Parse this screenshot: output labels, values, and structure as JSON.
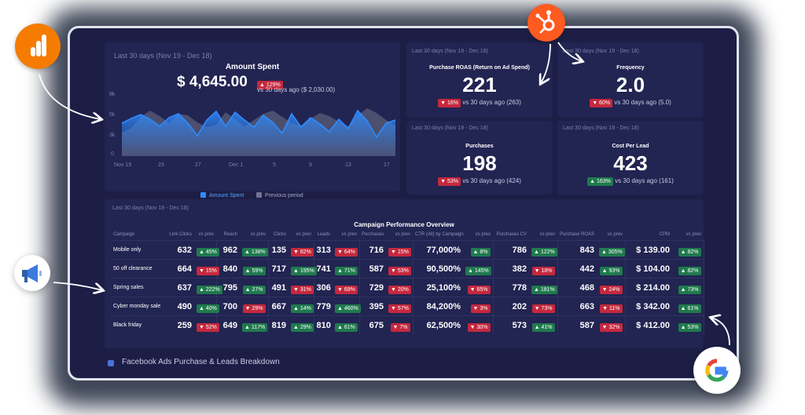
{
  "amount_spent": {
    "period": "Last 30 days (Nov 19 - Dec 18)",
    "title": "Amount Spent",
    "value": "$ 4,645.00",
    "badge": "▲ 129%",
    "compare": "vs 30 days ago ($ 2,030.00)"
  },
  "chart_data": {
    "type": "area",
    "title": "",
    "xlabel": "",
    "ylabel": "",
    "ylim": [
      0,
      8000
    ],
    "y_ticks": [
      "8k",
      "5k",
      "3k",
      "0"
    ],
    "x_ticks": [
      "Nov 19",
      "23",
      "27",
      "Dec 1",
      "5",
      "9",
      "13",
      "17"
    ],
    "legend_placement": "bottom",
    "series": [
      {
        "name": "Amount Spent",
        "color": "#2f8bff",
        "values": [
          4200,
          4800,
          5300,
          4700,
          3800,
          4900,
          5400,
          4200,
          2600,
          4600,
          5700,
          3800,
          5600,
          4600,
          3700,
          5200,
          4300,
          2900,
          5400,
          3700,
          4900,
          4100,
          3100,
          4700,
          3500,
          5800,
          4500,
          2400,
          4200,
          4600
        ]
      },
      {
        "name": "Previous period",
        "color": "#5b5d78",
        "values": [
          3000,
          3600,
          5000,
          5800,
          5100,
          4200,
          5400,
          5200,
          4300,
          3700,
          4000,
          5600,
          4700,
          3800,
          4600,
          5400,
          5800,
          5000,
          4200,
          3900,
          4800,
          5500,
          5100,
          4400,
          3800,
          5200,
          6100,
          5500,
          4600,
          3900
        ]
      }
    ]
  },
  "kpis": {
    "roas": {
      "period": "Last 30 days (Nov 19 - Dec 18)",
      "title": "Purchase ROAS (Return on Ad Spend)",
      "value": "221",
      "badge": "▼ 16%",
      "compare": "vs 30 days ago (263)"
    },
    "frequency": {
      "period": "Last 30 days (Nov 19 - Dec 18)",
      "title": "Frequency",
      "value": "2.0",
      "badge": "▼ 60%",
      "compare": "vs 30 days ago (5.0)"
    },
    "purchases": {
      "period": "Last 30 days (Nov 19 - Dec 18)",
      "title": "Purchases",
      "value": "198",
      "badge": "▼ 53%",
      "compare": "vs 30 days ago (424)"
    },
    "cpl": {
      "period": "Last 30 days (Nov 19 - Dec 18)",
      "title": "Cost Per Lead",
      "value": "423",
      "badge": "▲ 163%",
      "compare": "vs 30 days ago (161)"
    }
  },
  "table": {
    "period": "Last 30 days (Nov 19 - Dec 18)",
    "title": "Campaign Performance Overview",
    "headers": [
      "Campaign",
      "Link Clicks",
      "vs prev",
      "Reach",
      "vs prev",
      "Clicks",
      "vs prev",
      "Leads",
      "vs prev",
      "Purchases",
      "vs prev",
      "CTR (All) by Campaign",
      "vs prev",
      "Purchases CV",
      "vs prev",
      "Purchase ROAS",
      "vs prev",
      "CPM",
      "vs prev"
    ],
    "rows": [
      {
        "name": "Mobile only",
        "cells": [
          [
            "632",
            "▲ 45%",
            "up"
          ],
          [
            "962",
            "▲ 138%",
            "up"
          ],
          [
            "135",
            "▼ 82%",
            "down"
          ],
          [
            "313",
            "▼ 64%",
            "down"
          ],
          [
            "716",
            "▼ 15%",
            "down"
          ],
          [
            "77,000%",
            "▲ 8%",
            "up"
          ],
          [
            "786",
            "▲ 122%",
            "up"
          ],
          [
            "843",
            "▲ 305%",
            "up"
          ],
          [
            "$ 139.00",
            "▲ 82%",
            "up"
          ]
        ]
      },
      {
        "name": "50 off clearance",
        "cells": [
          [
            "664",
            "▼ 15%",
            "down"
          ],
          [
            "840",
            "▲ 59%",
            "up"
          ],
          [
            "717",
            "▲ 195%",
            "up"
          ],
          [
            "741",
            "▲ 71%",
            "up"
          ],
          [
            "587",
            "▼ 53%",
            "down"
          ],
          [
            "90,500%",
            "▲ 145%",
            "up"
          ],
          [
            "382",
            "▼ 18%",
            "down"
          ],
          [
            "442",
            "▲ 93%",
            "up"
          ],
          [
            "$ 104.00",
            "▲ 82%",
            "up"
          ]
        ]
      },
      {
        "name": "Spring sales",
        "cells": [
          [
            "637",
            "▲ 222%",
            "up"
          ],
          [
            "795",
            "▲ 27%",
            "up"
          ],
          [
            "491",
            "▼ 31%",
            "down"
          ],
          [
            "306",
            "▼ 69%",
            "down"
          ],
          [
            "729",
            "▼ 20%",
            "down"
          ],
          [
            "25,100%",
            "▼ 65%",
            "down"
          ],
          [
            "778",
            "▲ 181%",
            "up"
          ],
          [
            "468",
            "▼ 24%",
            "down"
          ],
          [
            "$ 214.00",
            "▲ 73%",
            "up"
          ]
        ]
      },
      {
        "name": "Cyber monday sale",
        "cells": [
          [
            "490",
            "▲ 40%",
            "up"
          ],
          [
            "700",
            "▼ 29%",
            "down"
          ],
          [
            "667",
            "▲ 14%",
            "up"
          ],
          [
            "779",
            "▲ 460%",
            "up"
          ],
          [
            "395",
            "▼ 57%",
            "down"
          ],
          [
            "84,200%",
            "▼ 3%",
            "down"
          ],
          [
            "202",
            "▼ 73%",
            "down"
          ],
          [
            "663",
            "▼ 11%",
            "down"
          ],
          [
            "$ 342.00",
            "▲ 61%",
            "up"
          ]
        ]
      },
      {
        "name": "Black friday",
        "cells": [
          [
            "259",
            "▼ 52%",
            "down"
          ],
          [
            "649",
            "▲ 117%",
            "up"
          ],
          [
            "819",
            "▲ 29%",
            "up"
          ],
          [
            "810",
            "▲ 61%",
            "up"
          ],
          [
            "675",
            "▼ 7%",
            "down"
          ],
          [
            "62,500%",
            "▼ 30%",
            "down"
          ],
          [
            "573",
            "▲ 41%",
            "up"
          ],
          [
            "587",
            "▼ 32%",
            "down"
          ],
          [
            "$ 412.00",
            "▲ 53%",
            "up"
          ]
        ]
      }
    ]
  },
  "footer": {
    "title": "Facebook Ads Purchase & Leads Breakdown"
  },
  "integrations": {
    "analytics_icon": "google-analytics-icon",
    "hubspot_icon": "hubspot-icon",
    "ads_icon": "megaphone-icon",
    "google_icon": "google-icon"
  },
  "colors": {
    "background": "#1d1e46",
    "panel": "#222452",
    "up": "#1f7a4d",
    "down": "#c5283d",
    "line": "#2f8bff",
    "analytics": "#f57c00",
    "hubspot": "#ff5a1f"
  }
}
